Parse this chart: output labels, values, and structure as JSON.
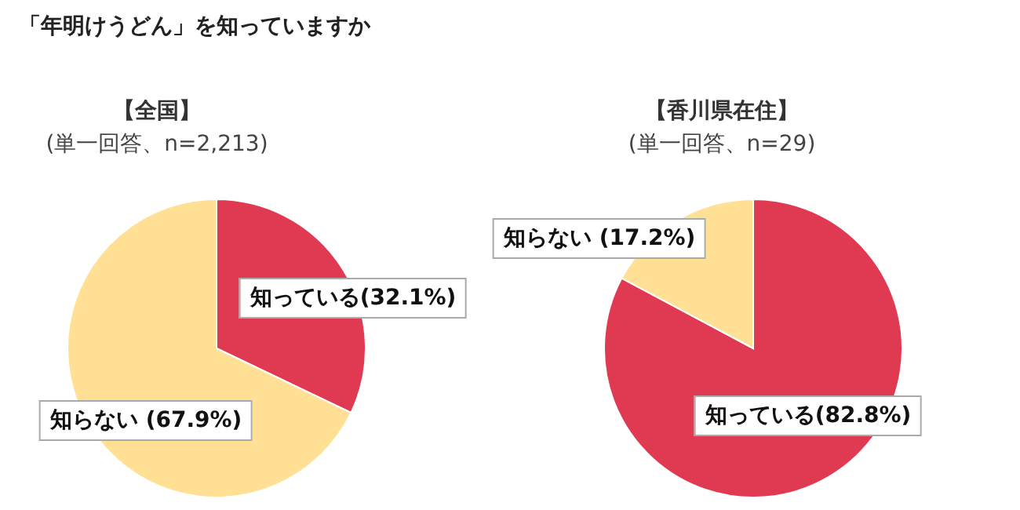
{
  "chart_data": [
    {
      "type": "pie",
      "annotations": [
        "「年明けうどん」を知っていますか"
      ],
      "title": "【全国】",
      "subtitle": "(単一回答、n=2,213)",
      "categories": [
        "知っている",
        "知らない"
      ],
      "values": [
        32.1,
        67.9
      ],
      "colors": [
        "#e03a52",
        "#ffe094"
      ],
      "value_labels": [
        "(32.1%)",
        "(67.9%)"
      ],
      "legend": false
    },
    {
      "type": "pie",
      "title": "【香川県在住】",
      "subtitle": "(単一回答、n=29)",
      "categories": [
        "知っている",
        "知らない"
      ],
      "values": [
        82.8,
        17.2
      ],
      "colors": [
        "#e03a52",
        "#ffe094"
      ],
      "value_labels": [
        "(82.8%)",
        "(17.2%)"
      ],
      "legend": false
    }
  ]
}
